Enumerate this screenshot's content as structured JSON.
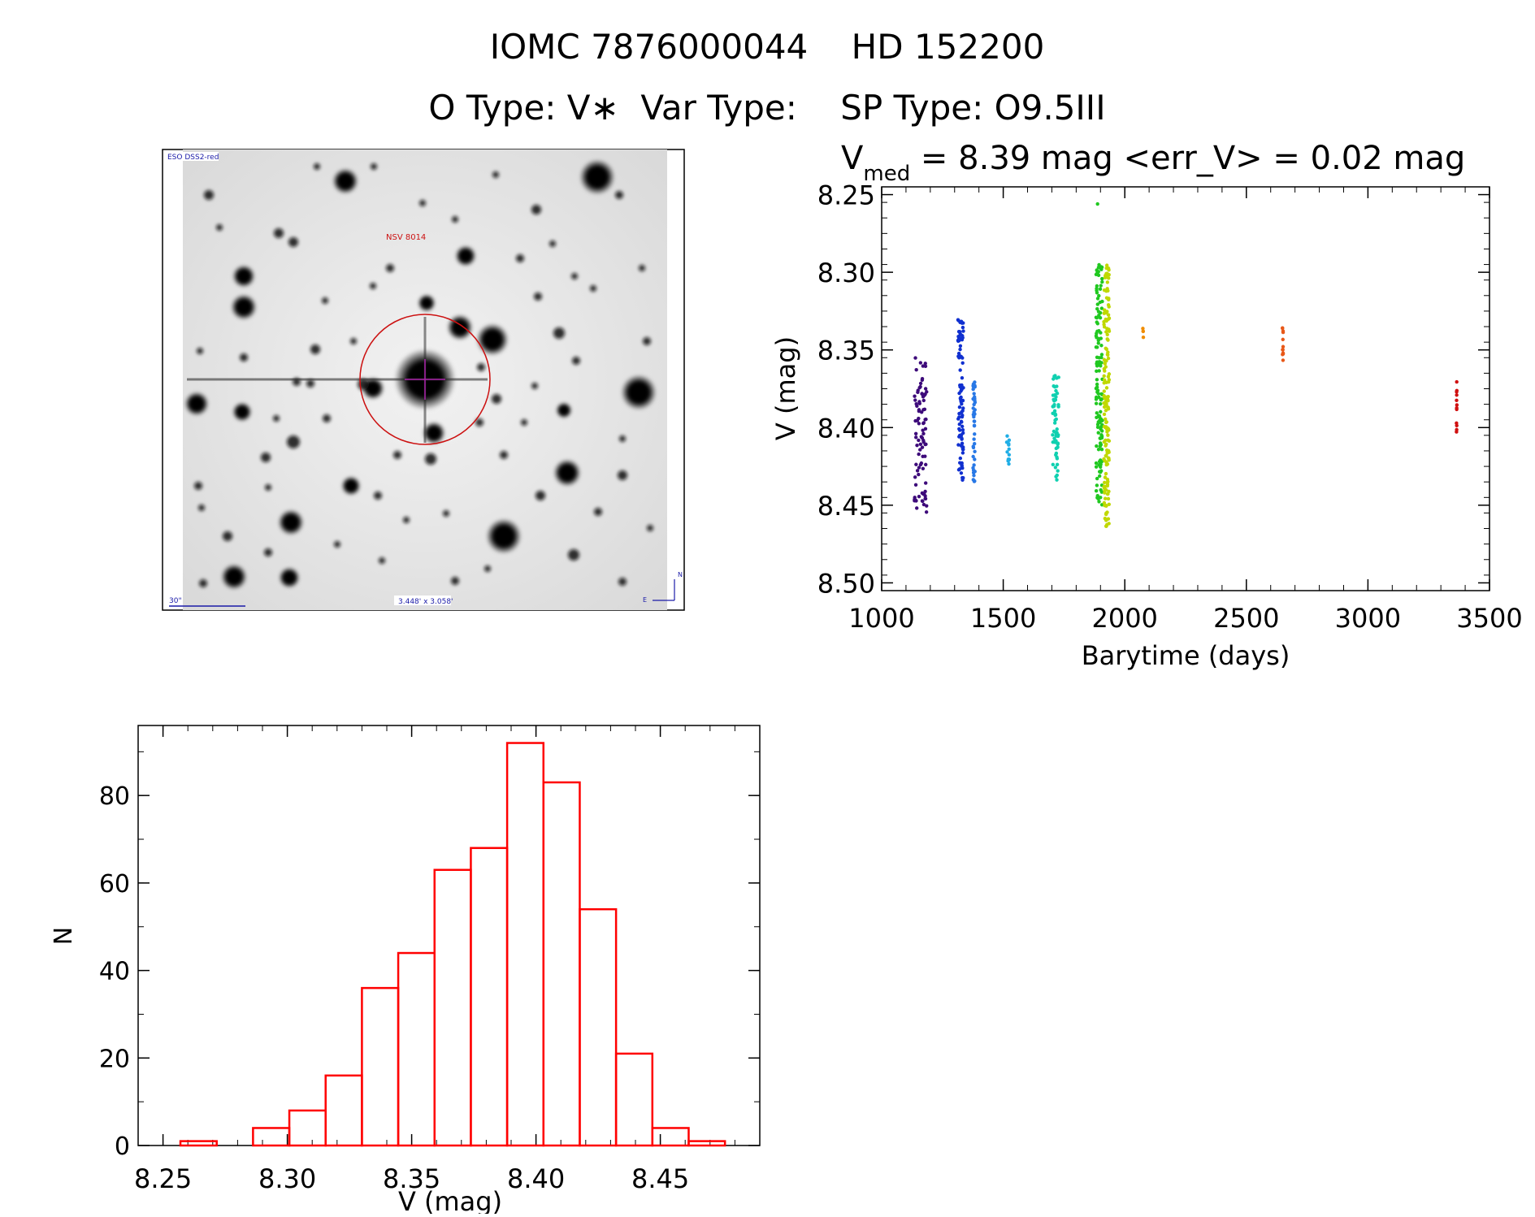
{
  "header": {
    "title": "IOMC 7876000044    HD 152200",
    "subtitle": "O Type: V∗  Var Type:    SP Type: O9.5III"
  },
  "finder": {
    "survey_label": "ESO DSS2-red",
    "object_label": "NSV 8014",
    "scale_label": "30\"",
    "fov_label": "3.448' x 3.058'",
    "north_label": "N",
    "east_label": "E",
    "colors": {
      "label": "#1a1aa8",
      "marker": "#cc1010",
      "cross": "#aa22aa"
    }
  },
  "chart_data": [
    {
      "type": "scatter",
      "title_prefix": "V",
      "title_sub": "med",
      "title_rest": " = 8.39 mag <err_V> = 0.02 mag",
      "xlabel": "Barytime (days)",
      "ylabel": "V (mag)",
      "xlim": [
        1000,
        3500
      ],
      "ylim": [
        8.5,
        8.25
      ],
      "xticks": [
        1000,
        1500,
        2000,
        2500,
        3000,
        3500
      ],
      "yticks": [
        "8.25",
        "8.30",
        "8.35",
        "8.40",
        "8.45",
        "8.50"
      ],
      "groups": [
        {
          "x": 1160,
          "spread": 50,
          "color": "#3d0a7a",
          "vmin": 8.355,
          "vmax": 8.455
        },
        {
          "x": 1325,
          "spread": 22,
          "color": "#1030d0",
          "vmin": 8.33,
          "vmax": 8.435
        },
        {
          "x": 1380,
          "spread": 8,
          "color": "#2878e6",
          "vmin": 8.37,
          "vmax": 8.437
        },
        {
          "x": 1520,
          "spread": 12,
          "color": "#20aee6",
          "vmin": 8.405,
          "vmax": 8.424
        },
        {
          "x": 1715,
          "spread": 26,
          "color": "#10d0b0",
          "vmin": 8.365,
          "vmax": 8.435
        },
        {
          "x": 1895,
          "spread": 26,
          "color": "#20c820",
          "vmin": 8.295,
          "vmax": 8.45
        },
        {
          "x": 1925,
          "spread": 22,
          "color": "#c0d800",
          "vmin": 8.295,
          "vmax": 8.466
        },
        {
          "x": 2075,
          "spread": 4,
          "color": "#f08c00",
          "vmin": 8.332,
          "vmax": 8.342
        },
        {
          "x": 2650,
          "spread": 3,
          "color": "#e85818",
          "vmin": 8.332,
          "vmax": 8.362
        },
        {
          "x": 3365,
          "spread": 2,
          "color": "#d01010",
          "vmin": 8.37,
          "vmax": 8.404
        }
      ],
      "outlier": {
        "x": 1888,
        "v": 8.256,
        "color": "#20c820"
      }
    },
    {
      "type": "bar",
      "xlabel": "V (mag)",
      "ylabel": "N",
      "xlim": [
        8.24,
        8.49
      ],
      "ylim": [
        0,
        96
      ],
      "xticks": [
        8.25,
        8.3,
        8.35,
        8.4,
        8.45
      ],
      "xtick_labels": [
        "8.25",
        "8.30",
        "8.35",
        "8.40",
        "8.45"
      ],
      "yticks": [
        0,
        20,
        40,
        60,
        80
      ],
      "bin_width": 0.0146,
      "bin_starts": [
        8.257,
        8.2716,
        8.2862,
        8.3008,
        8.3154,
        8.33,
        8.3446,
        8.3592,
        8.3738,
        8.3884,
        8.403,
        8.4176,
        8.4322,
        8.4468,
        8.4614
      ],
      "values": [
        1,
        0,
        4,
        8,
        16,
        36,
        44,
        63,
        68,
        92,
        83,
        54,
        21,
        4,
        1
      ],
      "color": "#ff0000"
    }
  ]
}
